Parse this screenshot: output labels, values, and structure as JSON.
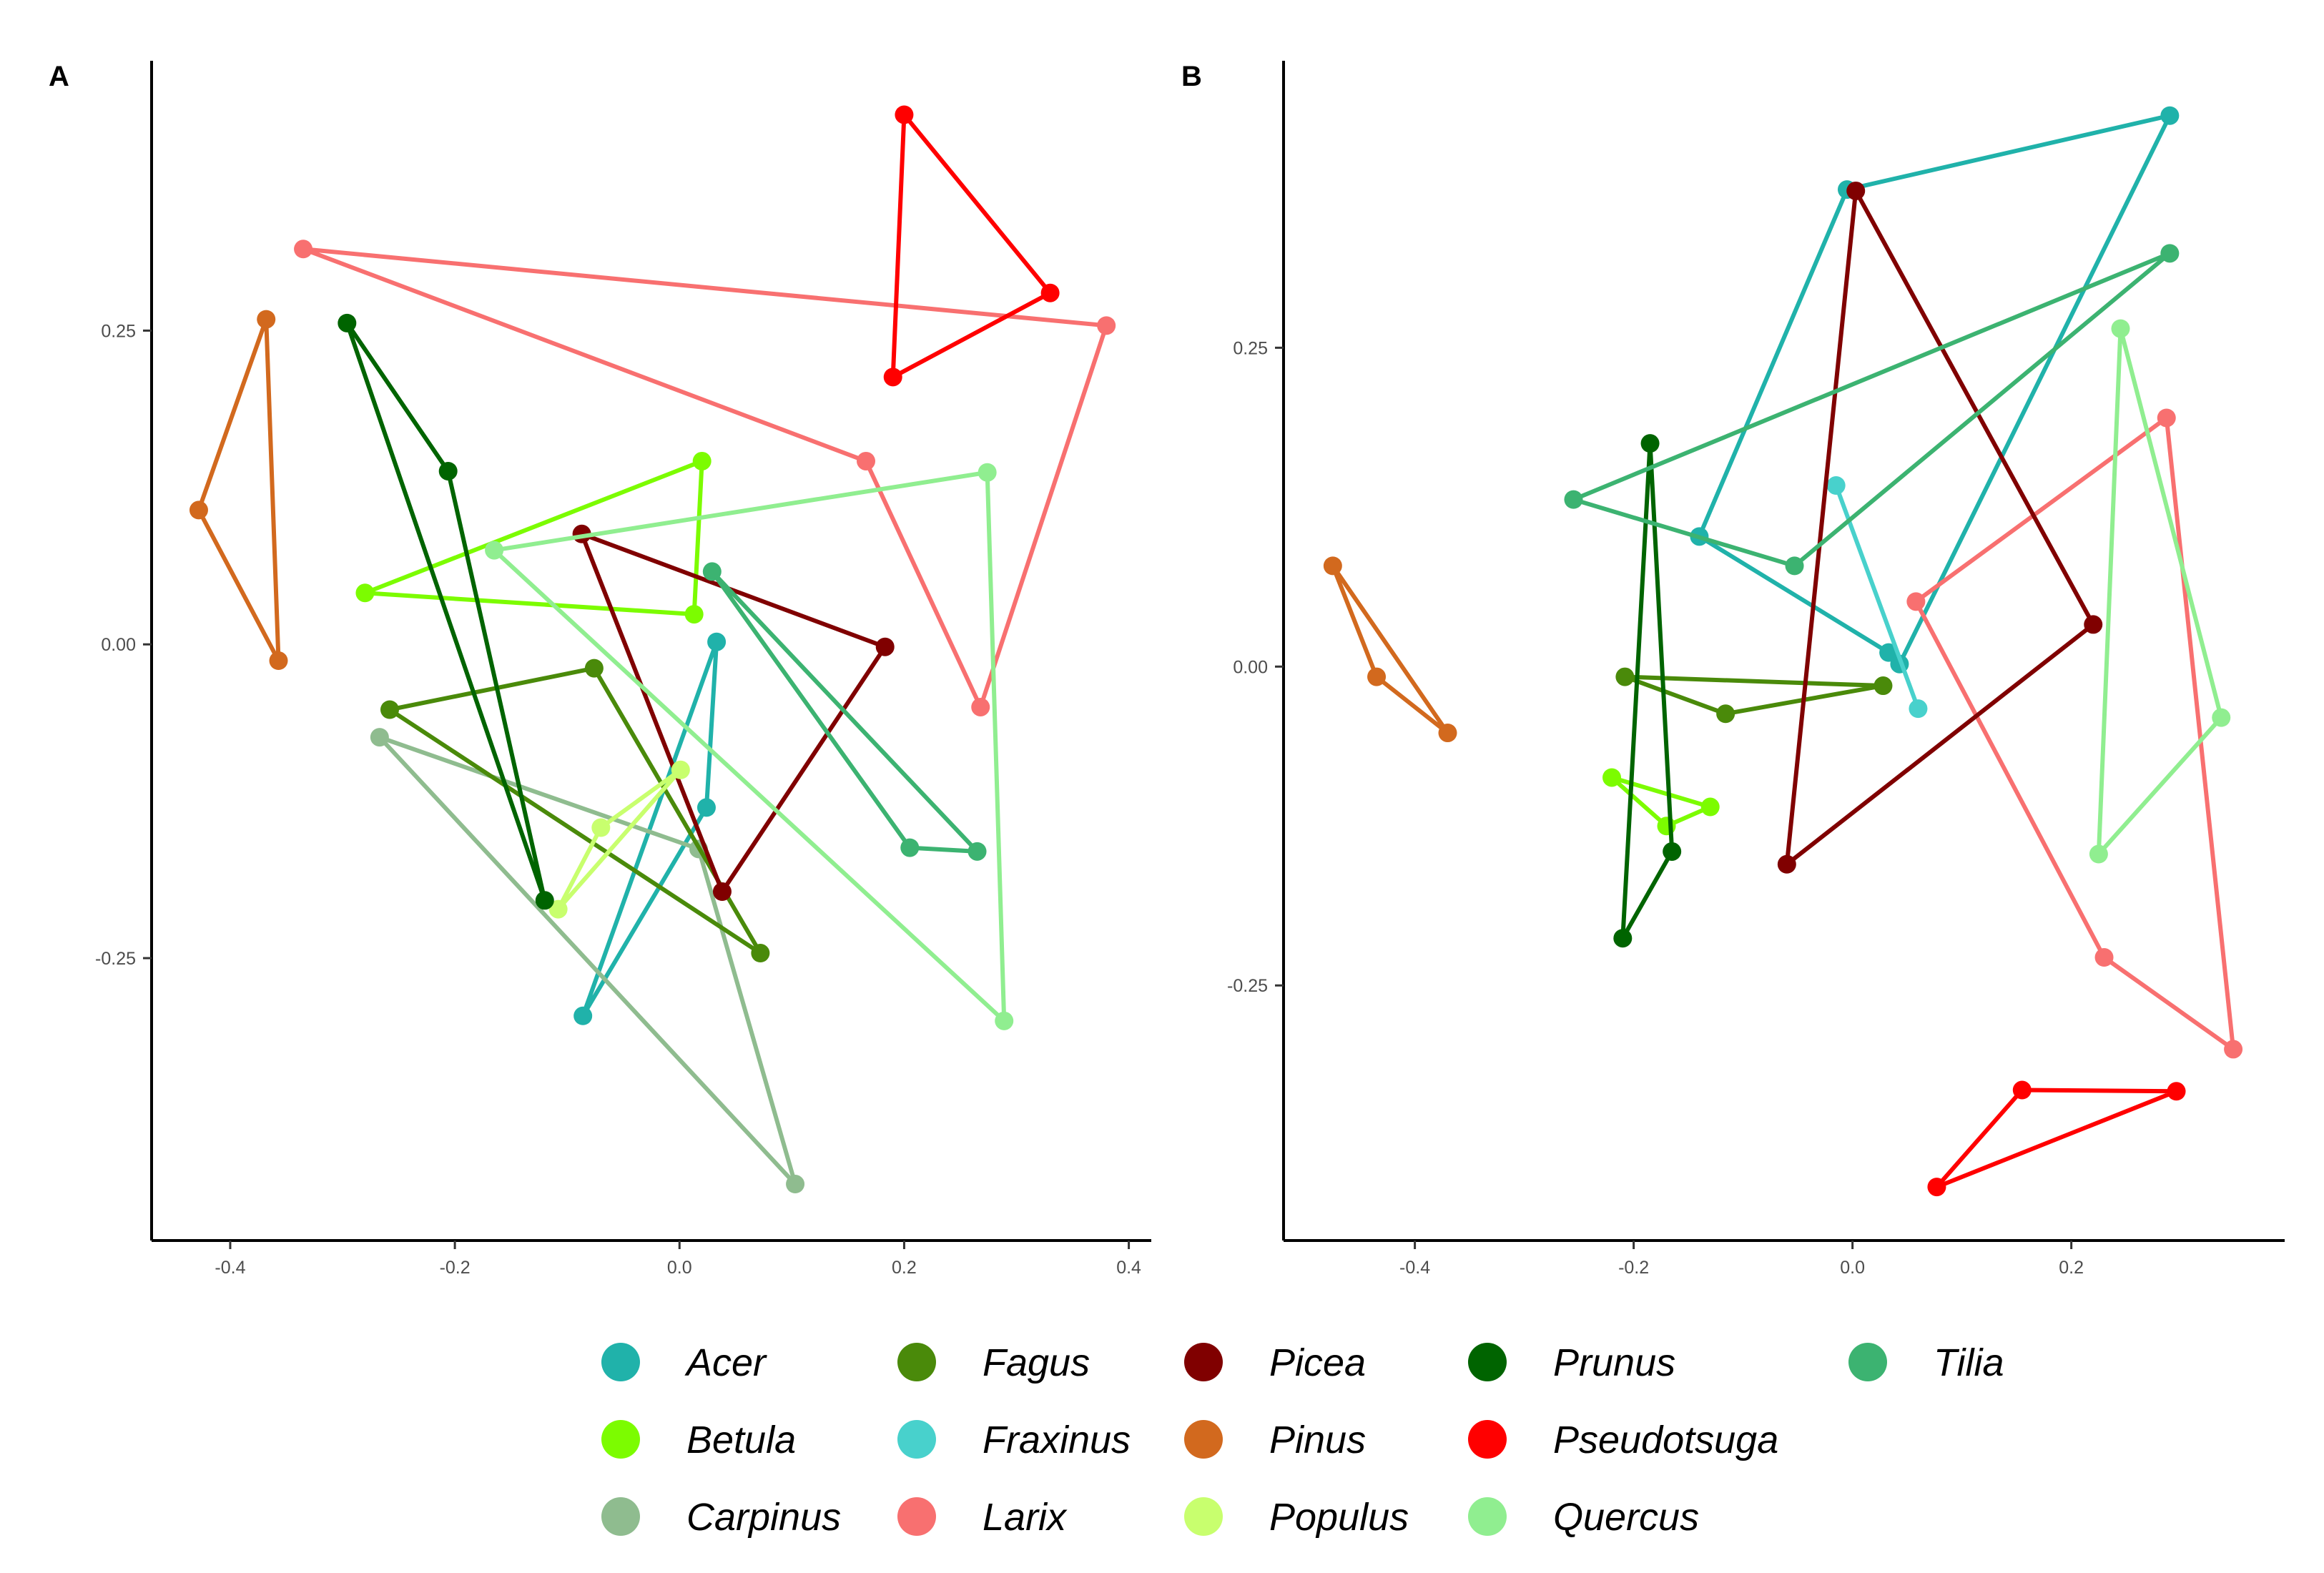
{
  "colors": {
    "Acer": "#20B2AA",
    "Betula": "#7CFC00",
    "Carpinus": "#8FBC8F",
    "Fagus": "#4A8A0A",
    "Fraxinus": "#48D1CC",
    "Larix": "#F87070",
    "Picea": "#800000",
    "Pinus": "#D2691E",
    "Populus": "#C8FF6E",
    "Prunus": "#006400",
    "Pseudotsuga": "#FF0000",
    "Quercus": "#90EE90",
    "Tilia": "#3CB371"
  },
  "legend": {
    "columns": [
      [
        "Acer",
        "Betula",
        "Carpinus"
      ],
      [
        "Fagus",
        "Fraxinus",
        "Larix"
      ],
      [
        "Picea",
        "Pinus",
        "Populus"
      ],
      [
        "Prunus",
        "Pseudotsuga",
        "Quercus"
      ],
      [
        "Tilia"
      ]
    ]
  },
  "chart_data": [
    {
      "type": "scatter",
      "panel_label": "A",
      "title": "",
      "xlabel": "",
      "ylabel": "",
      "xlim": [
        -0.47,
        0.42
      ],
      "ylim": [
        -0.475,
        0.465
      ],
      "x_ticks": [
        -0.4,
        -0.2,
        0.0,
        0.2,
        0.4
      ],
      "x_tick_labels": [
        "-0.4",
        "-0.2",
        "0.0",
        "0.2",
        "0.4"
      ],
      "y_ticks": [
        -0.25,
        0.0,
        0.25
      ],
      "y_tick_labels": [
        "-0.25",
        "0.00",
        "0.25"
      ],
      "grid": false,
      "series": [
        {
          "name": "Acer",
          "points": [
            [
              0.033,
              0.002
            ],
            [
              0.024,
              -0.13
            ],
            [
              -0.086,
              -0.296
            ]
          ]
        },
        {
          "name": "Betula",
          "points": [
            [
              0.02,
              0.146
            ],
            [
              -0.28,
              0.041
            ],
            [
              0.013,
              0.024
            ]
          ]
        },
        {
          "name": "Carpinus",
          "points": [
            [
              -0.267,
              -0.074
            ],
            [
              0.017,
              -0.163
            ],
            [
              0.103,
              -0.43
            ]
          ]
        },
        {
          "name": "Fagus",
          "points": [
            [
              -0.076,
              -0.019
            ],
            [
              -0.258,
              -0.052
            ],
            [
              0.072,
              -0.246
            ]
          ]
        },
        {
          "name": "Larix",
          "points": [
            [
              -0.335,
              0.315
            ],
            [
              0.38,
              0.254
            ],
            [
              0.268,
              -0.05
            ],
            [
              0.166,
              0.146
            ]
          ]
        },
        {
          "name": "Picea",
          "points": [
            [
              -0.087,
              0.088
            ],
            [
              0.183,
              -0.002
            ],
            [
              0.038,
              -0.197
            ]
          ]
        },
        {
          "name": "Pinus",
          "points": [
            [
              -0.368,
              0.259
            ],
            [
              -0.357,
              -0.013
            ],
            [
              -0.428,
              0.107
            ]
          ]
        },
        {
          "name": "Populus",
          "points": [
            [
              -0.108,
              -0.211
            ],
            [
              -0.07,
              -0.146
            ],
            [
              0.001,
              -0.1
            ]
          ]
        },
        {
          "name": "Prunus",
          "points": [
            [
              -0.296,
              0.256
            ],
            [
              -0.206,
              0.138
            ],
            [
              -0.12,
              -0.204
            ]
          ]
        },
        {
          "name": "Pseudotsuga",
          "points": [
            [
              0.2,
              0.422
            ],
            [
              0.33,
              0.28
            ],
            [
              0.19,
              0.213
            ]
          ]
        },
        {
          "name": "Quercus",
          "points": [
            [
              -0.165,
              0.075
            ],
            [
              0.274,
              0.137
            ],
            [
              0.289,
              -0.3
            ]
          ]
        },
        {
          "name": "Tilia",
          "points": [
            [
              0.029,
              0.058
            ],
            [
              0.265,
              -0.165
            ],
            [
              0.205,
              -0.162
            ]
          ]
        }
      ]
    },
    {
      "type": "scatter",
      "panel_label": "B",
      "title": "",
      "xlabel": "",
      "ylabel": "",
      "xlim": [
        -0.52,
        0.395
      ],
      "ylim": [
        -0.45,
        0.475
      ],
      "x_ticks": [
        -0.4,
        -0.2,
        0.0,
        0.2
      ],
      "x_tick_labels": [
        "-0.4",
        "-0.2",
        "0.0",
        "0.2"
      ],
      "y_ticks": [
        -0.25,
        0.0,
        0.25
      ],
      "y_tick_labels": [
        "-0.25",
        "0.00",
        "0.25"
      ],
      "grid": false,
      "series": [
        {
          "name": "Acer",
          "points": [
            [
              -0.005,
              0.374
            ],
            [
              0.29,
              0.432
            ],
            [
              0.043,
              0.002
            ],
            [
              0.033,
              0.011
            ],
            [
              -0.14,
              0.102
            ]
          ]
        },
        {
          "name": "Betula",
          "points": [
            [
              -0.22,
              -0.087
            ],
            [
              -0.13,
              -0.11
            ],
            [
              -0.17,
              -0.125
            ]
          ]
        },
        {
          "name": "Fagus",
          "points": [
            [
              -0.208,
              -0.008
            ],
            [
              0.028,
              -0.015
            ],
            [
              -0.116,
              -0.037
            ]
          ]
        },
        {
          "name": "Fraxinus",
          "points": [
            [
              -0.015,
              0.142
            ],
            [
              0.06,
              -0.033
            ]
          ]
        },
        {
          "name": "Larix",
          "points": [
            [
              0.058,
              0.051
            ],
            [
              0.287,
              0.195
            ],
            [
              0.348,
              -0.3
            ],
            [
              0.23,
              -0.228
            ]
          ]
        },
        {
          "name": "Picea",
          "points": [
            [
              0.003,
              0.373
            ],
            [
              0.22,
              0.033
            ],
            [
              -0.06,
              -0.155
            ]
          ]
        },
        {
          "name": "Pinus",
          "points": [
            [
              -0.475,
              0.079
            ],
            [
              -0.37,
              -0.052
            ],
            [
              -0.435,
              -0.008
            ]
          ]
        },
        {
          "name": "Prunus",
          "points": [
            [
              -0.185,
              0.175
            ],
            [
              -0.165,
              -0.145
            ],
            [
              -0.21,
              -0.213
            ]
          ]
        },
        {
          "name": "Pseudotsuga",
          "points": [
            [
              0.155,
              -0.332
            ],
            [
              0.296,
              -0.333
            ],
            [
              0.077,
              -0.408
            ]
          ]
        },
        {
          "name": "Quercus",
          "points": [
            [
              0.245,
              0.265
            ],
            [
              0.337,
              -0.04
            ],
            [
              0.225,
              -0.147
            ]
          ]
        },
        {
          "name": "Tilia",
          "points": [
            [
              -0.255,
              0.131
            ],
            [
              0.29,
              0.324
            ],
            [
              -0.053,
              0.079
            ]
          ]
        }
      ]
    }
  ]
}
